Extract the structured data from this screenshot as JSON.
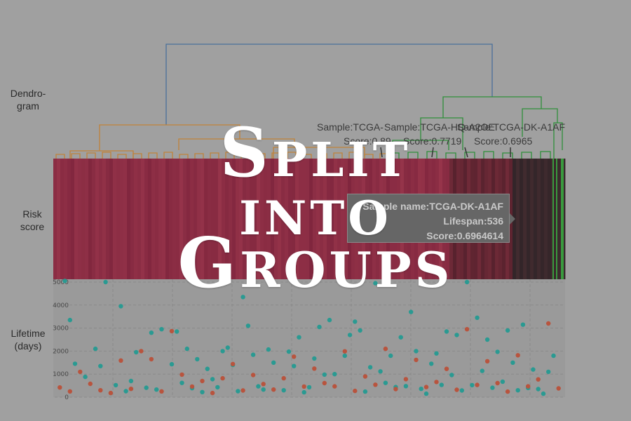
{
  "overlay": {
    "line1": "Split",
    "line2": "into",
    "line3": "Groups"
  },
  "row_labels": {
    "dendrogram": "Dendro-\ngram",
    "risk": "Risk\nscore",
    "lifetime": "Lifetime\n(days)"
  },
  "tooltip": {
    "line1": "Sample name:TCGA-DK-A1AF",
    "line2": "Lifespan:536",
    "line3": "Score:0.6964614"
  },
  "annotations": [
    {
      "sample": "Sample:TCGA-",
      "score": "Score:0.89"
    },
    {
      "sample": "Sample:TCGA-HQ-A2OE",
      "score": "Score:0.7719"
    },
    {
      "sample": "Sample:TCGA-DK-A1AF",
      "score": "Score:0.6965"
    }
  ],
  "colors": {
    "background": "#a0a0a0",
    "group_orange": "#c0823a",
    "group_green": "#2f8f3a",
    "root_blue": "#4a6f9a",
    "heat_red": "#8c2a45",
    "heat_dark": "#3a2a2e",
    "scatter_teal": "#2a9a92",
    "scatter_red": "#b8543e"
  },
  "chart_data": {
    "type": "scatter",
    "panels": [
      "dendrogram",
      "heatmap",
      "scatter"
    ],
    "yticks": [
      0,
      1000,
      2000,
      3000,
      4000,
      5000
    ],
    "ylim": [
      0,
      5000
    ],
    "ylabel": "Lifetime\n(days)",
    "series": [
      {
        "color": "teal",
        "x": [
          2,
          3,
          4,
          6,
          8,
          9,
          10,
          12,
          13,
          14,
          15,
          16,
          18,
          19,
          20,
          21,
          23,
          24,
          25,
          26,
          27,
          28,
          29,
          30,
          31,
          32,
          33,
          34,
          35,
          36,
          37,
          38,
          39,
          40,
          41,
          42,
          43,
          45,
          46,
          47,
          48,
          49,
          50,
          51,
          52,
          53,
          54,
          55,
          57,
          58,
          59,
          60,
          61,
          62,
          63,
          64,
          65,
          66,
          67,
          68,
          69,
          70,
          71,
          72,
          73,
          74,
          75,
          76,
          77,
          78,
          79,
          80,
          81,
          82,
          83,
          84,
          85,
          86,
          87,
          88,
          89,
          90,
          91,
          92,
          93,
          94,
          95,
          96,
          97,
          98
        ],
        "y": [
          5050,
          3350,
          1450,
          880,
          2100,
          1350,
          5000,
          520,
          3950,
          260,
          700,
          1950,
          410,
          2800,
          330,
          2950,
          1430,
          2850,
          620,
          2100,
          390,
          1650,
          220,
          1230,
          780,
          430,
          2000,
          2150,
          1400,
          260,
          4350,
          3100,
          1840,
          470,
          330,
          2070,
          1500,
          300,
          1980,
          1350,
          2600,
          210,
          430,
          1680,
          3050,
          980,
          3350,
          1000,
          1800,
          2700,
          3280,
          2900,
          240,
          1300,
          4950,
          1120,
          620,
          1800,
          440,
          2600,
          480,
          3700,
          2000,
          360,
          150,
          1450,
          1900,
          530,
          2850,
          960,
          2700,
          290,
          5000,
          520,
          3450,
          1140,
          2500,
          410,
          1970,
          670,
          2900,
          1500,
          300,
          3150,
          400,
          1200,
          350,
          150,
          1100,
          1800
        ]
      },
      {
        "color": "red",
        "x": [
          1,
          3,
          5,
          7,
          9,
          11,
          13,
          15,
          17,
          19,
          21,
          23,
          25,
          27,
          29,
          31,
          33,
          35,
          37,
          39,
          41,
          43,
          45,
          47,
          49,
          51,
          53,
          55,
          57,
          59,
          61,
          63,
          65,
          67,
          69,
          71,
          73,
          75,
          77,
          79,
          81,
          83,
          85,
          87,
          89,
          91,
          93,
          95,
          97,
          99
        ],
        "y": [
          420,
          250,
          1100,
          580,
          300,
          180,
          1590,
          360,
          2000,
          1650,
          250,
          2870,
          980,
          460,
          700,
          180,
          820,
          1440,
          290,
          960,
          570,
          330,
          820,
          1760,
          460,
          1240,
          610,
          470,
          1990,
          270,
          900,
          540,
          2100,
          350,
          780,
          1620,
          440,
          660,
          1230,
          320,
          2950,
          530,
          1560,
          610,
          240,
          1820,
          470,
          770,
          3200,
          380
        ]
      }
    ]
  }
}
